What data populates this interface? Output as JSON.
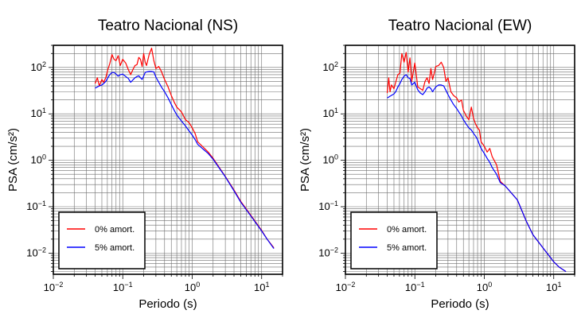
{
  "chart_data": [
    {
      "type": "line",
      "title": "Teatro Nacional (NS)",
      "xlabel": "Periodo (s)",
      "ylabel": "PSA (cm/s²)",
      "xscale": "log",
      "yscale": "log",
      "xlim": [
        0.01,
        20
      ],
      "ylim": [
        0.0035,
        300
      ],
      "grid": true,
      "legend_position": "bottom-left",
      "x_ticks": [
        {
          "value": 0.01,
          "base": "10",
          "exp": "−2"
        },
        {
          "value": 0.1,
          "base": "10",
          "exp": "−1"
        },
        {
          "value": 1,
          "base": "10",
          "exp": "0"
        },
        {
          "value": 10,
          "base": "10",
          "exp": "1"
        }
      ],
      "y_ticks": [
        {
          "value": 0.01,
          "base": "10",
          "exp": "−2"
        },
        {
          "value": 0.1,
          "base": "10",
          "exp": "−1"
        },
        {
          "value": 1,
          "base": "10",
          "exp": "0"
        },
        {
          "value": 10,
          "base": "10",
          "exp": "1"
        },
        {
          "value": 100,
          "base": "10",
          "exp": "2"
        }
      ],
      "series": [
        {
          "name": "0% amort.",
          "color": "#ff0000",
          "x": [
            0.04,
            0.043,
            0.046,
            0.05,
            0.053,
            0.057,
            0.061,
            0.065,
            0.07,
            0.075,
            0.08,
            0.086,
            0.092,
            0.1,
            0.11,
            0.12,
            0.13,
            0.14,
            0.15,
            0.16,
            0.17,
            0.18,
            0.19,
            0.2,
            0.21,
            0.22,
            0.24,
            0.26,
            0.28,
            0.3,
            0.33,
            0.36,
            0.4,
            0.45,
            0.5,
            0.55,
            0.6,
            0.7,
            0.8,
            0.9,
            1.0,
            1.1,
            1.2,
            1.4,
            1.7,
            2,
            3,
            4,
            5,
            7,
            10,
            12,
            15
          ],
          "y": [
            45,
            60,
            40,
            55,
            48,
            60,
            90,
            120,
            190,
            150,
            140,
            180,
            110,
            150,
            125,
            90,
            70,
            90,
            110,
            115,
            165,
            150,
            105,
            200,
            130,
            110,
            190,
            260,
            140,
            95,
            105,
            82,
            55,
            38,
            25,
            18,
            14,
            11,
            7.5,
            6.5,
            5,
            3.8,
            2.5,
            2.0,
            1.5,
            1.1,
            0.45,
            0.23,
            0.13,
            0.065,
            0.031,
            0.02,
            0.013
          ]
        },
        {
          "name": "5% amort.",
          "color": "#0000ff",
          "x": [
            0.04,
            0.043,
            0.046,
            0.05,
            0.053,
            0.057,
            0.061,
            0.065,
            0.07,
            0.075,
            0.08,
            0.086,
            0.092,
            0.1,
            0.11,
            0.12,
            0.13,
            0.14,
            0.15,
            0.16,
            0.17,
            0.18,
            0.19,
            0.2,
            0.21,
            0.22,
            0.24,
            0.26,
            0.28,
            0.3,
            0.33,
            0.36,
            0.4,
            0.45,
            0.5,
            0.55,
            0.6,
            0.7,
            0.8,
            0.9,
            1.0,
            1.1,
            1.2,
            1.4,
            1.7,
            2,
            3,
            4,
            5,
            7,
            10,
            12,
            15
          ],
          "y": [
            36,
            38,
            40,
            42,
            45,
            50,
            60,
            70,
            78,
            78,
            72,
            65,
            70,
            72,
            64,
            58,
            48,
            54,
            60,
            64,
            66,
            60,
            55,
            65,
            78,
            80,
            82,
            82,
            80,
            62,
            48,
            38,
            30,
            22,
            16,
            12,
            9.5,
            7,
            5.5,
            4.3,
            3.5,
            2.8,
            2.2,
            1.8,
            1.4,
            1.05,
            0.44,
            0.22,
            0.125,
            0.063,
            0.03,
            0.02,
            0.0125
          ]
        }
      ]
    },
    {
      "type": "line",
      "title": "Teatro Nacional (EW)",
      "xlabel": "Periodo (s)",
      "ylabel": "PSA (cm/s²)",
      "xscale": "log",
      "yscale": "log",
      "xlim": [
        0.01,
        20
      ],
      "ylim": [
        0.0035,
        300
      ],
      "grid": true,
      "legend_position": "bottom-left",
      "x_ticks": [
        {
          "value": 0.01,
          "base": "10",
          "exp": "−2"
        },
        {
          "value": 0.1,
          "base": "10",
          "exp": "−1"
        },
        {
          "value": 1,
          "base": "10",
          "exp": "0"
        },
        {
          "value": 10,
          "base": "10",
          "exp": "1"
        }
      ],
      "y_ticks": [
        {
          "value": 0.01,
          "base": "10",
          "exp": "−2"
        },
        {
          "value": 0.1,
          "base": "10",
          "exp": "−1"
        },
        {
          "value": 1,
          "base": "10",
          "exp": "0"
        },
        {
          "value": 10,
          "base": "10",
          "exp": "1"
        },
        {
          "value": 100,
          "base": "10",
          "exp": "2"
        }
      ],
      "series": [
        {
          "name": "0% amort.",
          "color": "#ff0000",
          "x": [
            0.04,
            0.042,
            0.044,
            0.046,
            0.05,
            0.053,
            0.057,
            0.061,
            0.065,
            0.07,
            0.075,
            0.08,
            0.085,
            0.09,
            0.1,
            0.11,
            0.12,
            0.13,
            0.14,
            0.15,
            0.16,
            0.17,
            0.18,
            0.19,
            0.2,
            0.22,
            0.24,
            0.26,
            0.28,
            0.3,
            0.33,
            0.36,
            0.4,
            0.43,
            0.47,
            0.5,
            0.55,
            0.6,
            0.65,
            0.7,
            0.75,
            0.8,
            0.85,
            0.9,
            1.0,
            1.1,
            1.2,
            1.3,
            1.5,
            1.7,
            2,
            3,
            4,
            5,
            7,
            10,
            12,
            15
          ],
          "y": [
            28,
            60,
            30,
            42,
            35,
            48,
            70,
            75,
            200,
            130,
            210,
            80,
            160,
            50,
            125,
            38,
            35,
            32,
            50,
            60,
            45,
            95,
            55,
            75,
            105,
            110,
            130,
            100,
            50,
            60,
            30,
            25,
            22,
            18,
            20,
            12,
            9,
            7.5,
            14,
            8,
            6,
            5,
            4.5,
            2.5,
            2.0,
            1.5,
            1.8,
            1.2,
            0.8,
            0.35,
            0.28,
            0.14,
            0.05,
            0.025,
            0.013,
            0.0065,
            0.005,
            0.004
          ]
        },
        {
          "name": "5% amort.",
          "color": "#0000ff",
          "x": [
            0.04,
            0.042,
            0.044,
            0.046,
            0.05,
            0.053,
            0.057,
            0.061,
            0.065,
            0.07,
            0.075,
            0.08,
            0.085,
            0.09,
            0.1,
            0.11,
            0.12,
            0.13,
            0.14,
            0.15,
            0.16,
            0.17,
            0.18,
            0.19,
            0.2,
            0.22,
            0.24,
            0.26,
            0.28,
            0.3,
            0.33,
            0.36,
            0.4,
            0.43,
            0.47,
            0.5,
            0.55,
            0.6,
            0.65,
            0.7,
            0.75,
            0.8,
            0.85,
            0.9,
            1.0,
            1.1,
            1.2,
            1.3,
            1.5,
            1.7,
            2,
            3,
            4,
            5,
            7,
            10,
            12,
            15
          ],
          "y": [
            22,
            23,
            24,
            25,
            27,
            30,
            38,
            45,
            55,
            65,
            70,
            60,
            58,
            42,
            48,
            33,
            28,
            26,
            30,
            36,
            38,
            35,
            30,
            34,
            38,
            42,
            42,
            40,
            32,
            26,
            20,
            16,
            13,
            11,
            9,
            7.5,
            6,
            5,
            4.5,
            3.8,
            3.3,
            2.8,
            2.2,
            1.8,
            1.4,
            1.1,
            0.9,
            0.7,
            0.5,
            0.33,
            0.28,
            0.14,
            0.05,
            0.025,
            0.013,
            0.0065,
            0.005,
            0.004
          ]
        }
      ]
    }
  ]
}
